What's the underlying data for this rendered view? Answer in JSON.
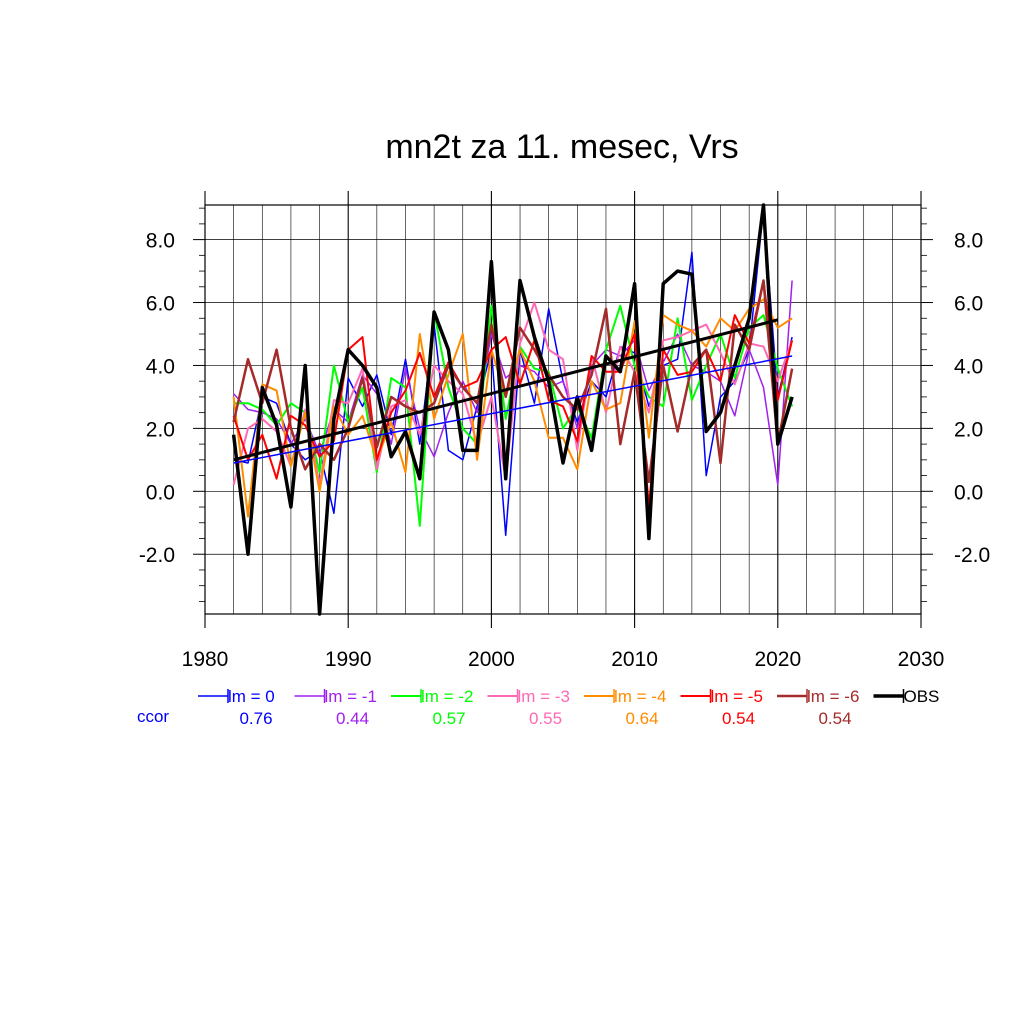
{
  "chart_data": {
    "type": "line",
    "title": "mn2t za 11. mesec, Vrs",
    "xlabel": "",
    "ylabel": "",
    "xlim": [
      1980,
      2030
    ],
    "ylim": [
      -3.9,
      9.1
    ],
    "x_ticks": [
      1980,
      1990,
      2000,
      2010,
      2020,
      2030
    ],
    "x_tick_labels": [
      "1980",
      "1990",
      "2000",
      "2010",
      "2020",
      "2030"
    ],
    "y_ticks": [
      -2,
      0,
      2,
      4,
      6,
      8
    ],
    "y_tick_labels": [
      "-2.0",
      "0.0",
      "2.0",
      "4.0",
      "6.0",
      "8.0"
    ],
    "grid": true,
    "legend_position": "bottom",
    "ccor_label": "ccor",
    "years": [
      1982,
      1983,
      1984,
      1985,
      1986,
      1987,
      1988,
      1989,
      1990,
      1991,
      1992,
      1993,
      1994,
      1995,
      1996,
      1997,
      1998,
      1999,
      2000,
      2001,
      2002,
      2003,
      2004,
      2005,
      2006,
      2007,
      2008,
      2009,
      2010,
      2011,
      2012,
      2013,
      2014,
      2015,
      2016,
      2017,
      2018,
      2019,
      2020,
      2021
    ],
    "series": [
      {
        "name": "lm = 0",
        "color": "#0000ff",
        "width": 1.5,
        "ccor": "0.76",
        "values": [
          1.0,
          0.9,
          3.0,
          2.8,
          1.5,
          1.0,
          1.3,
          -0.7,
          3.6,
          2.7,
          3.7,
          1.8,
          4.2,
          1.5,
          5.3,
          1.3,
          1.0,
          2.7,
          4.5,
          -1.4,
          4.5,
          2.8,
          5.8,
          3.5,
          2.2,
          3.5,
          3.0,
          4.6,
          4.4,
          2.7,
          4.0,
          4.2,
          7.6,
          0.5,
          3.0,
          3.5,
          4.5,
          9.0,
          3.0,
          4.9
        ]
      },
      {
        "name": "lm = -1",
        "color": "#a020f0",
        "width": 1.5,
        "ccor": "0.44",
        "values": [
          3.1,
          2.6,
          2.5,
          2.3,
          1.5,
          2.3,
          1.2,
          2.6,
          2.2,
          3.7,
          3.1,
          1.5,
          3.9,
          2.0,
          1.1,
          2.5,
          3.5,
          2.5,
          5.0,
          3.6,
          4.0,
          3.8,
          3.3,
          3.5,
          2.0,
          4.0,
          4.5,
          4.3,
          4.8,
          3.2,
          4.1,
          5.0,
          4.0,
          3.8,
          3.5,
          2.4,
          4.5,
          3.3,
          0.2,
          6.7
        ]
      },
      {
        "name": "lm = -2",
        "color": "#00ff00",
        "width": 2,
        "ccor": "0.57",
        "values": [
          2.8,
          2.8,
          2.6,
          2.1,
          2.8,
          2.5,
          0.6,
          4.0,
          2.2,
          3.3,
          0.6,
          3.6,
          3.3,
          -1.1,
          5.7,
          3.3,
          2.0,
          1.5,
          5.9,
          2.3,
          4.6,
          3.9,
          3.8,
          2.0,
          2.7,
          1.7,
          4.5,
          5.9,
          4.0,
          3.0,
          2.7,
          5.5,
          2.9,
          4.0,
          5.0,
          3.6,
          5.2,
          5.6,
          3.9,
          2.7
        ]
      },
      {
        "name": "lm = -3",
        "color": "#ff69b4",
        "width": 2,
        "ccor": "0.55",
        "values": [
          0.2,
          2.0,
          2.3,
          1.9,
          0.8,
          2.6,
          0.2,
          2.9,
          2.8,
          3.9,
          0.7,
          2.7,
          2.9,
          1.8,
          4.0,
          3.5,
          3.1,
          1.5,
          3.0,
          0.4,
          4.7,
          6.0,
          4.5,
          4.2,
          1.3,
          4.3,
          2.5,
          4.6,
          3.8,
          2.5,
          4.8,
          4.9,
          5.1,
          5.3,
          4.4,
          3.4,
          4.7,
          4.6,
          3.5,
          4.8
        ]
      },
      {
        "name": "lm = -4",
        "color": "#ff8c00",
        "width": 2,
        "ccor": "0.64",
        "values": [
          3.0,
          -0.8,
          3.4,
          3.2,
          0.8,
          2.5,
          0.0,
          2.7,
          1.8,
          2.4,
          1.0,
          2.2,
          0.6,
          5.0,
          2.3,
          3.7,
          5.0,
          1.0,
          4.5,
          3.0,
          4.5,
          3.5,
          1.7,
          1.7,
          0.7,
          3.5,
          2.6,
          2.8,
          5.4,
          1.7,
          5.6,
          5.3,
          5.1,
          4.6,
          5.5,
          5.1,
          5.8,
          6.1,
          5.2,
          5.5
        ]
      },
      {
        "name": "lm = -5",
        "color": "#ff0000",
        "width": 2,
        "ccor": "0.54",
        "values": [
          2.4,
          1.0,
          1.8,
          0.4,
          2.4,
          2.1,
          1.1,
          1.6,
          4.5,
          4.9,
          1.0,
          2.5,
          3.2,
          4.4,
          3.0,
          4.1,
          3.3,
          3.5,
          4.5,
          4.9,
          3.4,
          4.8,
          2.9,
          2.7,
          1.6,
          4.3,
          3.8,
          3.8,
          5.0,
          -0.5,
          4.5,
          3.7,
          3.8,
          4.5,
          3.5,
          5.6,
          4.7,
          6.7,
          2.9,
          4.8
        ]
      },
      {
        "name": "lm = -6",
        "color": "#a52a2a",
        "width": 2.5,
        "ccor": "0.54",
        "values": [
          2.2,
          4.2,
          2.8,
          4.5,
          2.0,
          0.7,
          1.5,
          1.0,
          2.0,
          3.6,
          1.4,
          3.0,
          2.7,
          2.5,
          2.8,
          4.0,
          3.3,
          2.8,
          5.3,
          3.0,
          5.2,
          4.5,
          3.7,
          3.0,
          2.6,
          3.7,
          5.8,
          1.5,
          3.8,
          0.3,
          4.0,
          1.9,
          4.0,
          4.5,
          0.9,
          5.3,
          4.5,
          6.7,
          1.5,
          3.9
        ]
      },
      {
        "name": "OBS",
        "color": "#000000",
        "width": 3.5,
        "values": [
          1.8,
          -2.0,
          3.3,
          2.1,
          -0.5,
          4.0,
          -3.9,
          2.3,
          4.5,
          4.0,
          3.3,
          1.1,
          1.9,
          0.4,
          5.7,
          4.5,
          1.3,
          1.3,
          7.3,
          0.4,
          6.7,
          4.9,
          3.5,
          0.9,
          3.0,
          1.3,
          4.3,
          3.8,
          6.6,
          -1.5,
          6.6,
          7.0,
          6.9,
          1.9,
          2.5,
          4.0,
          5.5,
          9.1,
          1.5,
          3.0
        ]
      }
    ],
    "trend_lines": [
      {
        "color": "#0000ff",
        "width": 1.5,
        "x": [
          1982,
          2021
        ],
        "y": [
          0.9,
          4.3
        ]
      },
      {
        "color": "#000000",
        "width": 3,
        "x": [
          1982,
          2020
        ],
        "y": [
          1.0,
          5.45
        ]
      }
    ]
  }
}
